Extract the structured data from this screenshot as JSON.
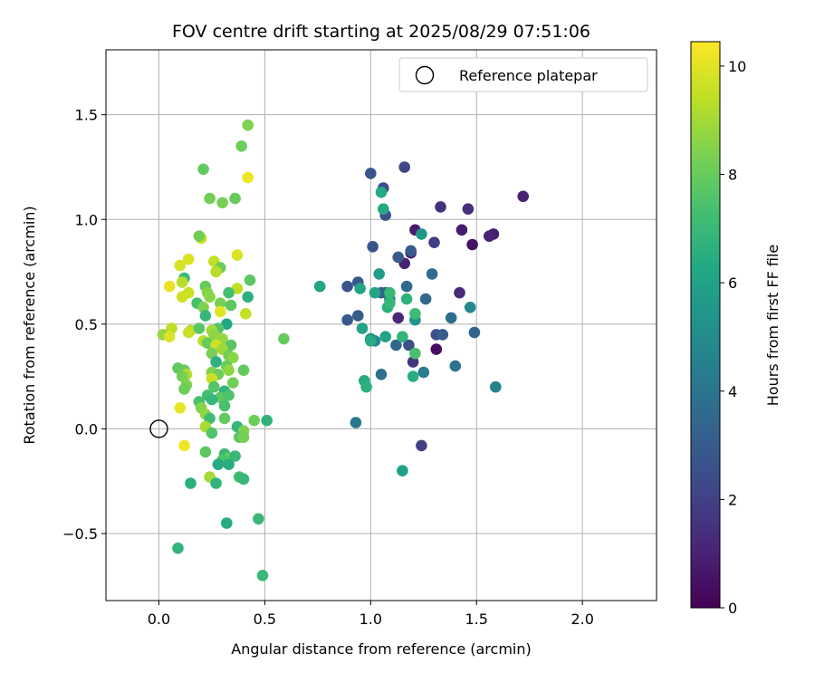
{
  "chart_data": {
    "type": "scatter",
    "title": "FOV centre drift starting at 2025/08/29 07:51:06",
    "xlabel": "Angular distance from reference (arcmin)",
    "ylabel": "Rotation from reference (arcmin)",
    "xlim": [
      -0.25,
      2.35
    ],
    "ylim": [
      -0.82,
      1.81
    ],
    "xticks": [
      0.0,
      0.5,
      1.0,
      1.5,
      2.0
    ],
    "xtick_labels": [
      "0.0",
      "0.5",
      "1.0",
      "1.5",
      "2.0"
    ],
    "yticks": [
      -0.5,
      0.0,
      0.5,
      1.0,
      1.5
    ],
    "ytick_labels": [
      "−0.5",
      "0.0",
      "0.5",
      "1.0",
      "1.5"
    ],
    "grid": true,
    "legend": {
      "placement": "upper right",
      "entries": [
        "Reference platepar"
      ]
    },
    "reference_point": {
      "x": 0.0,
      "y": 0.0,
      "marker": "open-circle"
    },
    "colorbar": {
      "label": "Hours from first FF file",
      "colormap": "viridis",
      "range": [
        0,
        10.45
      ],
      "ticks": [
        0,
        2,
        4,
        6,
        8,
        10
      ],
      "tick_labels": [
        "0",
        "2",
        "4",
        "6",
        "8",
        "10"
      ]
    },
    "points": [
      {
        "x": 1.72,
        "y": 1.11,
        "c": 1.0
      },
      {
        "x": 1.58,
        "y": 0.93,
        "c": 0.8
      },
      {
        "x": 1.56,
        "y": 0.92,
        "c": 1.0
      },
      {
        "x": 1.48,
        "y": 0.88,
        "c": 0.5
      },
      {
        "x": 1.43,
        "y": 0.95,
        "c": 0.8
      },
      {
        "x": 1.46,
        "y": 1.05,
        "c": 1.4
      },
      {
        "x": 1.42,
        "y": 0.65,
        "c": 1.2
      },
      {
        "x": 1.33,
        "y": 1.06,
        "c": 1.5
      },
      {
        "x": 1.31,
        "y": 0.38,
        "c": 0.4
      },
      {
        "x": 1.21,
        "y": 0.95,
        "c": 0.8
      },
      {
        "x": 1.19,
        "y": 0.84,
        "c": 1.0
      },
      {
        "x": 1.16,
        "y": 1.25,
        "c": 2.2
      },
      {
        "x": 1.16,
        "y": 0.79,
        "c": 1.0
      },
      {
        "x": 1.13,
        "y": 0.53,
        "c": 1.2
      },
      {
        "x": 1.3,
        "y": 0.89,
        "c": 1.9
      },
      {
        "x": 1.2,
        "y": 0.32,
        "c": 1.6
      },
      {
        "x": 1.24,
        "y": -0.08,
        "c": 2.0
      },
      {
        "x": 1.18,
        "y": 0.4,
        "c": 2.5
      },
      {
        "x": 1.0,
        "y": 1.22,
        "c": 2.8
      },
      {
        "x": 1.07,
        "y": 1.02,
        "c": 2.6
      },
      {
        "x": 1.06,
        "y": 1.15,
        "c": 2.4
      },
      {
        "x": 1.01,
        "y": 0.87,
        "c": 2.8
      },
      {
        "x": 1.13,
        "y": 0.82,
        "c": 2.9
      },
      {
        "x": 1.19,
        "y": 0.85,
        "c": 3.0
      },
      {
        "x": 1.31,
        "y": 0.45,
        "c": 2.6
      },
      {
        "x": 1.34,
        "y": 0.45,
        "c": 3.1
      },
      {
        "x": 1.29,
        "y": 0.74,
        "c": 3.6
      },
      {
        "x": 1.26,
        "y": 0.62,
        "c": 3.5
      },
      {
        "x": 1.38,
        "y": 0.53,
        "c": 3.8
      },
      {
        "x": 1.49,
        "y": 0.46,
        "c": 3.4
      },
      {
        "x": 1.4,
        "y": 0.3,
        "c": 4.0
      },
      {
        "x": 1.59,
        "y": 0.2,
        "c": 4.6
      },
      {
        "x": 1.47,
        "y": 0.58,
        "c": 4.9
      },
      {
        "x": 0.89,
        "y": 0.68,
        "c": 2.7
      },
      {
        "x": 0.94,
        "y": 0.7,
        "c": 2.9
      },
      {
        "x": 0.89,
        "y": 0.52,
        "c": 2.9
      },
      {
        "x": 0.94,
        "y": 0.54,
        "c": 3.0
      },
      {
        "x": 1.05,
        "y": 0.65,
        "c": 3.1
      },
      {
        "x": 1.07,
        "y": 0.65,
        "c": 3.3
      },
      {
        "x": 1.12,
        "y": 0.4,
        "c": 3.4
      },
      {
        "x": 1.17,
        "y": 0.68,
        "c": 3.5
      },
      {
        "x": 1.05,
        "y": 0.26,
        "c": 3.8
      },
      {
        "x": 1.25,
        "y": 0.27,
        "c": 4.4
      },
      {
        "x": 0.93,
        "y": 0.03,
        "c": 4.2
      },
      {
        "x": 1.02,
        "y": 0.42,
        "c": 4.7
      },
      {
        "x": 1.0,
        "y": 0.43,
        "c": 5.1
      },
      {
        "x": 1.21,
        "y": 0.52,
        "c": 5.3
      },
      {
        "x": 1.24,
        "y": 0.93,
        "c": 5.5
      },
      {
        "x": 1.09,
        "y": 0.62,
        "c": 5.2
      },
      {
        "x": 1.04,
        "y": 0.74,
        "c": 5.8
      },
      {
        "x": 1.07,
        "y": 0.44,
        "c": 6.0
      },
      {
        "x": 0.96,
        "y": 0.48,
        "c": 6.0
      },
      {
        "x": 0.95,
        "y": 0.67,
        "c": 6.2
      },
      {
        "x": 0.76,
        "y": 0.68,
        "c": 6.1
      },
      {
        "x": 1.02,
        "y": 0.65,
        "c": 6.2
      },
      {
        "x": 1.05,
        "y": 1.13,
        "c": 6.3
      },
      {
        "x": 1.06,
        "y": 1.05,
        "c": 6.3
      },
      {
        "x": 1.0,
        "y": 0.42,
        "c": 6.4
      },
      {
        "x": 0.97,
        "y": 0.23,
        "c": 6.4
      },
      {
        "x": 0.98,
        "y": 0.2,
        "c": 6.6
      },
      {
        "x": 1.08,
        "y": 0.58,
        "c": 6.6
      },
      {
        "x": 1.09,
        "y": 0.6,
        "c": 6.9
      },
      {
        "x": 1.15,
        "y": 0.44,
        "c": 6.8
      },
      {
        "x": 1.17,
        "y": 0.62,
        "c": 6.7
      },
      {
        "x": 1.2,
        "y": 0.25,
        "c": 6.5
      },
      {
        "x": 1.15,
        "y": -0.2,
        "c": 5.9
      },
      {
        "x": 1.21,
        "y": 0.36,
        "c": 7.4
      },
      {
        "x": 1.21,
        "y": 0.55,
        "c": 7.1
      },
      {
        "x": 1.09,
        "y": 0.65,
        "c": 7.0
      },
      {
        "x": 0.59,
        "y": 0.43,
        "c": 8.0
      },
      {
        "x": 0.42,
        "y": 1.45,
        "c": 8.4
      },
      {
        "x": 0.39,
        "y": 1.35,
        "c": 8.1
      },
      {
        "x": 0.42,
        "y": 1.2,
        "c": 10.2
      },
      {
        "x": 0.21,
        "y": 1.24,
        "c": 7.9
      },
      {
        "x": 0.24,
        "y": 1.1,
        "c": 8.2
      },
      {
        "x": 0.3,
        "y": 1.08,
        "c": 8.3
      },
      {
        "x": 0.36,
        "y": 1.1,
        "c": 8.0
      },
      {
        "x": 0.2,
        "y": 0.91,
        "c": 9.7
      },
      {
        "x": 0.19,
        "y": 0.92,
        "c": 8.2
      },
      {
        "x": 0.37,
        "y": 0.83,
        "c": 9.9
      },
      {
        "x": 0.14,
        "y": 0.81,
        "c": 9.9
      },
      {
        "x": 0.1,
        "y": 0.78,
        "c": 9.8
      },
      {
        "x": 0.26,
        "y": 0.8,
        "c": 9.5
      },
      {
        "x": 0.29,
        "y": 0.77,
        "c": 8.1
      },
      {
        "x": 0.27,
        "y": 0.75,
        "c": 9.3
      },
      {
        "x": 0.12,
        "y": 0.72,
        "c": 7.0
      },
      {
        "x": 0.11,
        "y": 0.7,
        "c": 9.3
      },
      {
        "x": 0.43,
        "y": 0.71,
        "c": 7.8
      },
      {
        "x": 0.05,
        "y": 0.68,
        "c": 10.1
      },
      {
        "x": 0.22,
        "y": 0.68,
        "c": 8.0
      },
      {
        "x": 0.23,
        "y": 0.65,
        "c": 8.5
      },
      {
        "x": 0.37,
        "y": 0.67,
        "c": 9.4
      },
      {
        "x": 0.33,
        "y": 0.65,
        "c": 7.3
      },
      {
        "x": 0.14,
        "y": 0.65,
        "c": 9.6
      },
      {
        "x": 0.11,
        "y": 0.63,
        "c": 9.7
      },
      {
        "x": 0.24,
        "y": 0.63,
        "c": 8.6
      },
      {
        "x": 0.42,
        "y": 0.63,
        "c": 6.6
      },
      {
        "x": 0.29,
        "y": 0.6,
        "c": 8.3
      },
      {
        "x": 0.18,
        "y": 0.6,
        "c": 7.4
      },
      {
        "x": 0.21,
        "y": 0.58,
        "c": 8.4
      },
      {
        "x": 0.29,
        "y": 0.56,
        "c": 10.0
      },
      {
        "x": 0.22,
        "y": 0.54,
        "c": 6.9
      },
      {
        "x": 0.41,
        "y": 0.55,
        "c": 9.5
      },
      {
        "x": 0.34,
        "y": 0.59,
        "c": 7.8
      },
      {
        "x": 0.32,
        "y": 0.5,
        "c": 6.2
      },
      {
        "x": 0.28,
        "y": 0.48,
        "c": 7.6
      },
      {
        "x": 0.06,
        "y": 0.48,
        "c": 9.4
      },
      {
        "x": 0.02,
        "y": 0.45,
        "c": 8.8
      },
      {
        "x": 0.05,
        "y": 0.44,
        "c": 9.9
      },
      {
        "x": 0.15,
        "y": 0.47,
        "c": 9.3
      },
      {
        "x": 0.14,
        "y": 0.46,
        "c": 9.6
      },
      {
        "x": 0.25,
        "y": 0.47,
        "c": 9.0
      },
      {
        "x": 0.19,
        "y": 0.48,
        "c": 7.7
      },
      {
        "x": 0.26,
        "y": 0.45,
        "c": 8.7
      },
      {
        "x": 0.3,
        "y": 0.43,
        "c": 8.8
      },
      {
        "x": 0.21,
        "y": 0.42,
        "c": 9.3
      },
      {
        "x": 0.23,
        "y": 0.41,
        "c": 8.0
      },
      {
        "x": 0.27,
        "y": 0.4,
        "c": 9.7
      },
      {
        "x": 0.34,
        "y": 0.4,
        "c": 7.7
      },
      {
        "x": 0.3,
        "y": 0.38,
        "c": 8.9
      },
      {
        "x": 0.25,
        "y": 0.36,
        "c": 8.3
      },
      {
        "x": 0.33,
        "y": 0.35,
        "c": 8.2
      },
      {
        "x": 0.35,
        "y": 0.34,
        "c": 8.6
      },
      {
        "x": 0.27,
        "y": 0.32,
        "c": 6.6
      },
      {
        "x": 0.32,
        "y": 0.3,
        "c": 8.0
      },
      {
        "x": 0.33,
        "y": 0.28,
        "c": 8.7
      },
      {
        "x": 0.4,
        "y": 0.28,
        "c": 7.9
      },
      {
        "x": 0.09,
        "y": 0.29,
        "c": 7.9
      },
      {
        "x": 0.12,
        "y": 0.28,
        "c": 8.0
      },
      {
        "x": 0.13,
        "y": 0.26,
        "c": 9.2
      },
      {
        "x": 0.11,
        "y": 0.25,
        "c": 8.3
      },
      {
        "x": 0.25,
        "y": 0.27,
        "c": 8.5
      },
      {
        "x": 0.28,
        "y": 0.26,
        "c": 8.1
      },
      {
        "x": 0.13,
        "y": 0.21,
        "c": 8.4
      },
      {
        "x": 0.12,
        "y": 0.19,
        "c": 8.1
      },
      {
        "x": 0.25,
        "y": 0.24,
        "c": 9.6
      },
      {
        "x": 0.35,
        "y": 0.22,
        "c": 8.2
      },
      {
        "x": 0.26,
        "y": 0.2,
        "c": 7.6
      },
      {
        "x": 0.31,
        "y": 0.18,
        "c": 6.8
      },
      {
        "x": 0.23,
        "y": 0.16,
        "c": 7.3
      },
      {
        "x": 0.29,
        "y": 0.15,
        "c": 7.8
      },
      {
        "x": 0.33,
        "y": 0.16,
        "c": 7.5
      },
      {
        "x": 0.19,
        "y": 0.13,
        "c": 7.4
      },
      {
        "x": 0.25,
        "y": 0.14,
        "c": 6.9
      },
      {
        "x": 0.31,
        "y": 0.11,
        "c": 7.4
      },
      {
        "x": 0.2,
        "y": 0.1,
        "c": 8.5
      },
      {
        "x": 0.1,
        "y": 0.1,
        "c": 10.1
      },
      {
        "x": 0.22,
        "y": 0.07,
        "c": 8.7
      },
      {
        "x": 0.31,
        "y": 0.05,
        "c": 7.9
      },
      {
        "x": 0.24,
        "y": 0.05,
        "c": 7.2
      },
      {
        "x": 0.45,
        "y": 0.04,
        "c": 8.1
      },
      {
        "x": 0.51,
        "y": 0.04,
        "c": 6.7
      },
      {
        "x": 0.37,
        "y": 0.01,
        "c": 6.9
      },
      {
        "x": 0.22,
        "y": 0.01,
        "c": 9.1
      },
      {
        "x": 0.4,
        "y": -0.01,
        "c": 8.4
      },
      {
        "x": 0.38,
        "y": -0.04,
        "c": 7.7
      },
      {
        "x": 0.4,
        "y": -0.04,
        "c": 8.3
      },
      {
        "x": 0.25,
        "y": -0.02,
        "c": 7.6
      },
      {
        "x": 0.12,
        "y": -0.08,
        "c": 10.2
      },
      {
        "x": 0.22,
        "y": -0.11,
        "c": 7.8
      },
      {
        "x": 0.31,
        "y": -0.12,
        "c": 7.0
      },
      {
        "x": 0.33,
        "y": -0.14,
        "c": 7.9
      },
      {
        "x": 0.36,
        "y": -0.13,
        "c": 6.9
      },
      {
        "x": 0.3,
        "y": -0.15,
        "c": 7.5
      },
      {
        "x": 0.28,
        "y": -0.17,
        "c": 6.4
      },
      {
        "x": 0.33,
        "y": -0.17,
        "c": 6.5
      },
      {
        "x": 0.24,
        "y": -0.23,
        "c": 9.0
      },
      {
        "x": 0.38,
        "y": -0.23,
        "c": 7.2
      },
      {
        "x": 0.4,
        "y": -0.24,
        "c": 6.9
      },
      {
        "x": 0.15,
        "y": -0.26,
        "c": 6.6
      },
      {
        "x": 0.27,
        "y": -0.26,
        "c": 6.8
      },
      {
        "x": 0.32,
        "y": -0.45,
        "c": 6.4
      },
      {
        "x": 0.47,
        "y": -0.43,
        "c": 7.0
      },
      {
        "x": 0.09,
        "y": -0.57,
        "c": 6.8
      },
      {
        "x": 0.49,
        "y": -0.7,
        "c": 7.0
      }
    ]
  }
}
